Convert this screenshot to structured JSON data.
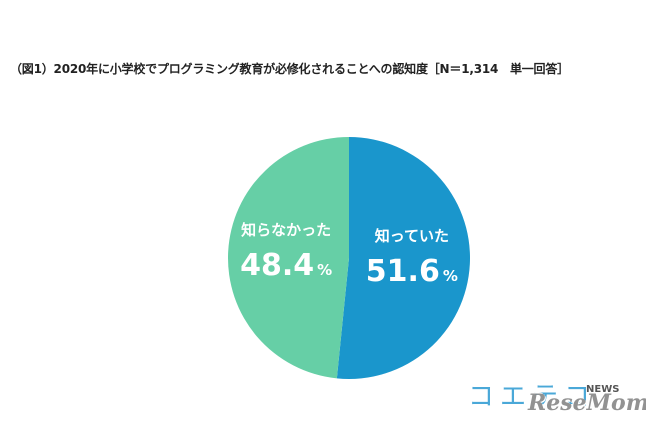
{
  "chart_data": {
    "type": "pie",
    "title": "（図1）2020年に小学校でプログラミング教育が必修化されることへの認知度［N＝1,314　単一回答］",
    "slices": [
      {
        "label": "知っていた",
        "value": 51.6,
        "value_text": "51.6",
        "color": "#1a96cc"
      },
      {
        "label": "知らなかった",
        "value": 48.4,
        "value_text": "48.4",
        "color": "#66cfa6"
      }
    ],
    "unit": "%",
    "start": "12 o'clock",
    "direction": "clockwise"
  },
  "brand": {
    "name": "コエテコ",
    "sub": "NEWS"
  },
  "watermark": "ReseMom"
}
